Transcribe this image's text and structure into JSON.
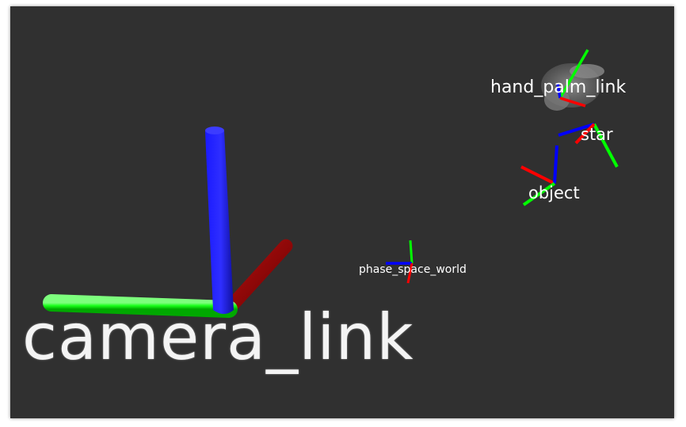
{
  "viewport": {
    "background_color": "#303030",
    "axis_colors": {
      "x": "#ff0000",
      "y": "#00ff00",
      "z": "#0000ff"
    },
    "frames": {
      "camera_link": "camera_link",
      "phase_space_world": "phase_space_world",
      "hand_palm_link": "hand_palm_link",
      "star": "star",
      "object": "object"
    }
  }
}
